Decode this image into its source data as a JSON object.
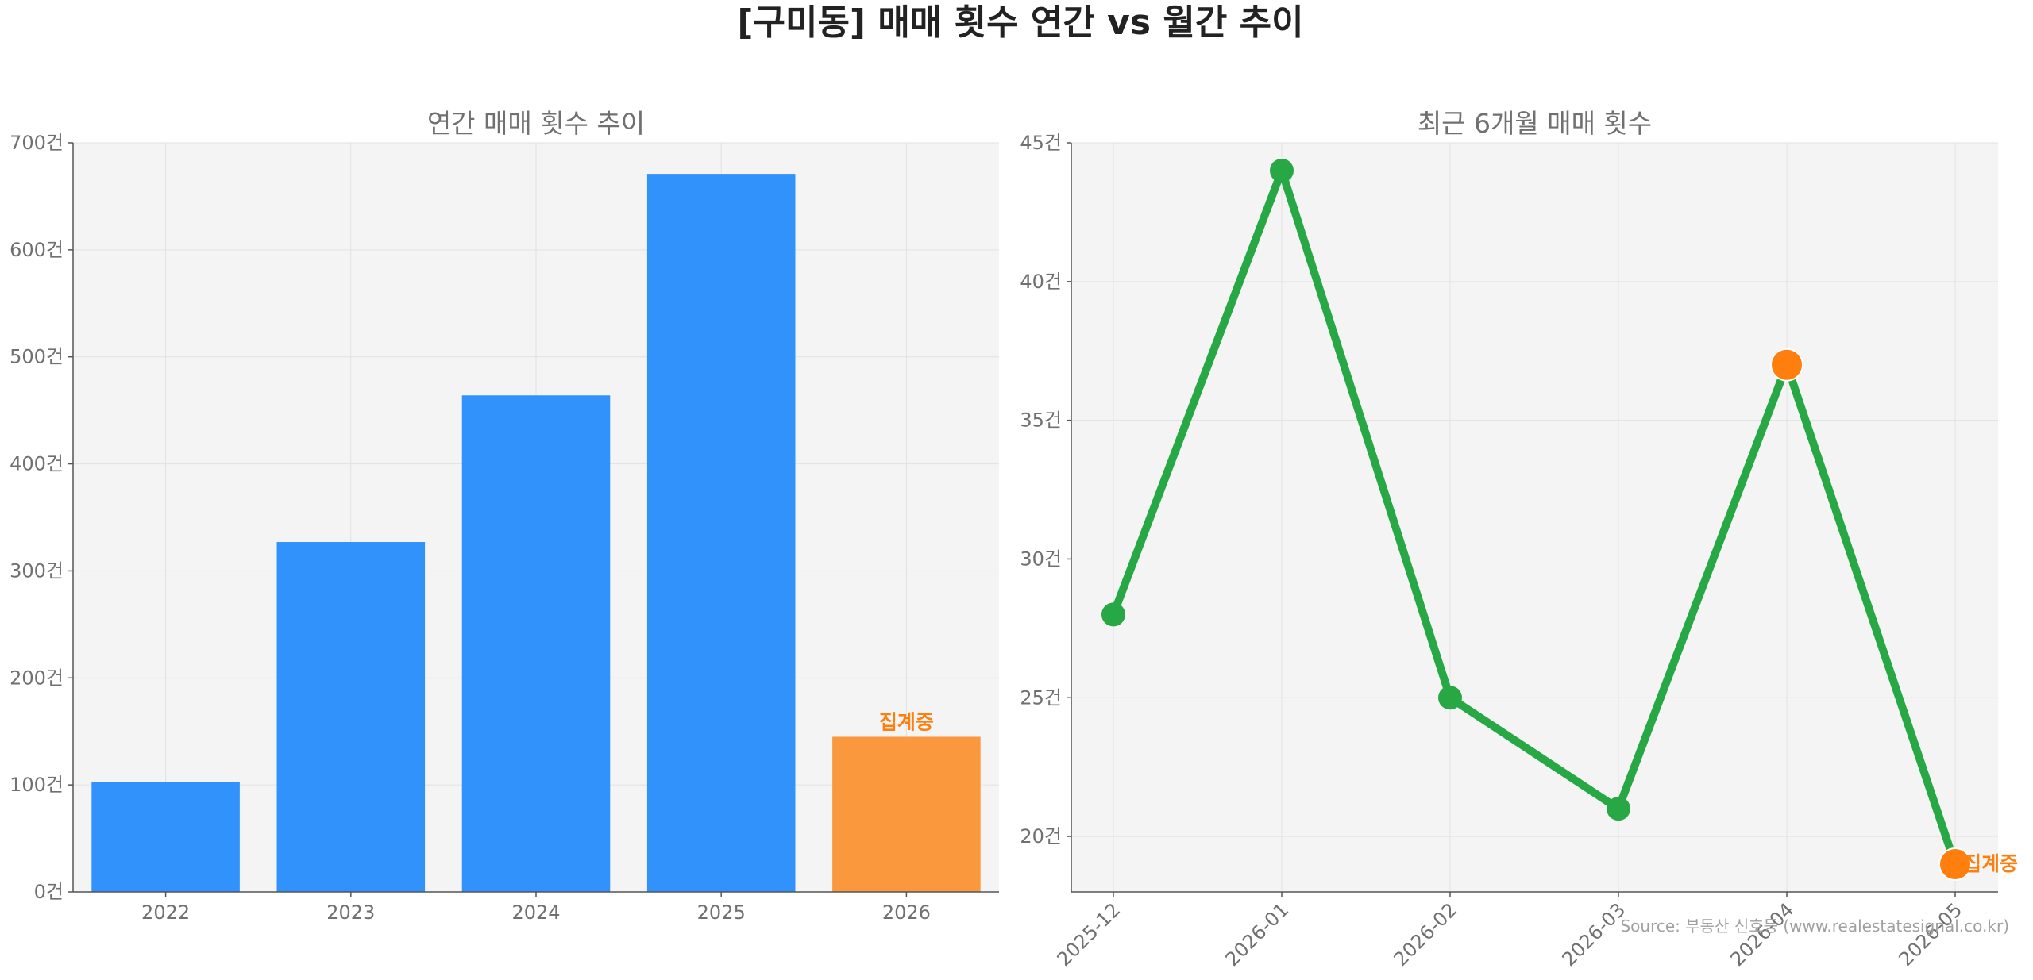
{
  "title": "[구미동] 매매 횟수 연간 vs 월간 추이",
  "source": "Source: 부동산 신호등 (www.realestatesignal.co.kr)",
  "colors": {
    "bar": "#3192fc",
    "bar_incomplete": "#fa983d",
    "line": "#28a745",
    "marker_highlight": "#ff7f0e",
    "annotation": "#ff7f0e",
    "panel_bg": "#f4f4f4"
  },
  "chart_data": [
    {
      "type": "bar",
      "title": "연간 매매 횟수 추이",
      "categories": [
        "2022",
        "2023",
        "2024",
        "2025",
        "2026"
      ],
      "values": [
        103,
        327,
        464,
        671,
        145
      ],
      "incomplete_index": 4,
      "annotation": "집계중",
      "ylim": [
        0,
        700
      ],
      "yticks": [
        0,
        100,
        200,
        300,
        400,
        500,
        600,
        700
      ],
      "ytick_labels": [
        "0건",
        "100건",
        "200건",
        "300건",
        "400건",
        "500건",
        "600건",
        "700건"
      ],
      "grid": true
    },
    {
      "type": "line",
      "title": "최근 6개월 매매 횟수",
      "categories": [
        "2025-12",
        "2026-01",
        "2026-02",
        "2026-03",
        "2026-04",
        "2026-05"
      ],
      "values": [
        28,
        44,
        25,
        21,
        37,
        19
      ],
      "highlight_indices": [
        4,
        5
      ],
      "annotation": "집계중",
      "annotation_index": 5,
      "ylim": [
        18,
        45
      ],
      "yticks": [
        20,
        25,
        30,
        35,
        40,
        45
      ],
      "ytick_labels": [
        "20건",
        "25건",
        "30건",
        "35건",
        "40건",
        "45건"
      ],
      "grid": true
    }
  ]
}
